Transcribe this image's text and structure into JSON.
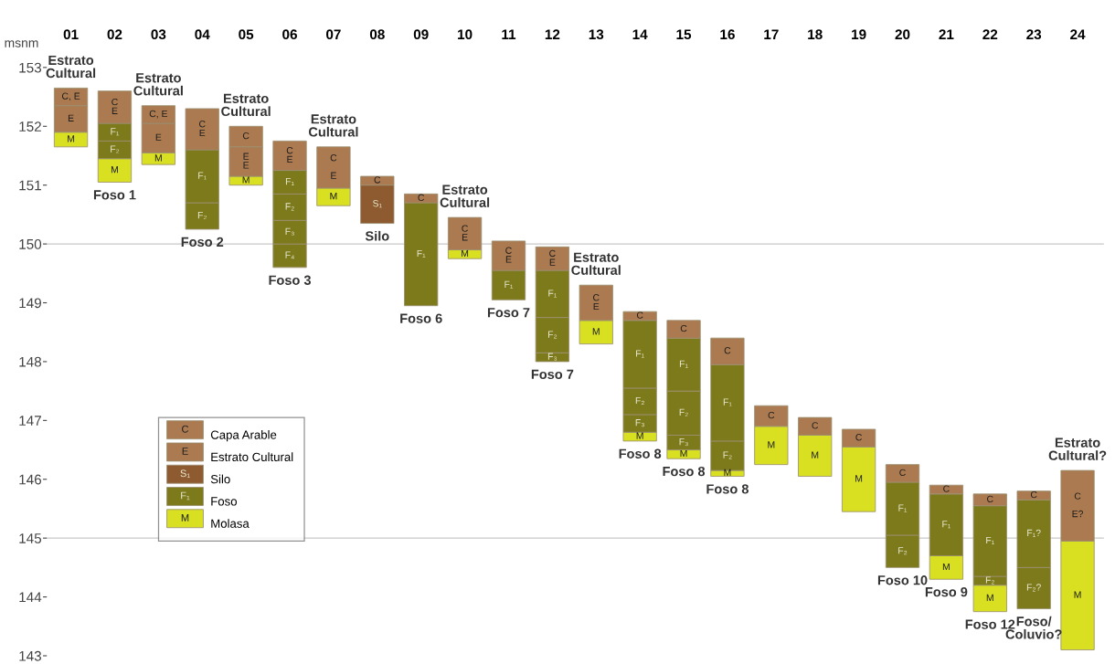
{
  "chart_data": {
    "type": "bar",
    "ylabel": "msnm",
    "categories": [
      "01",
      "02",
      "03",
      "04",
      "05",
      "06",
      "07",
      "08",
      "09",
      "10",
      "11",
      "12",
      "13",
      "14",
      "15",
      "16",
      "17",
      "18",
      "19",
      "20",
      "21",
      "22",
      "23",
      "24"
    ],
    "series": [
      {
        "name": "Molasa",
        "color": "#d8e021",
        "base": [
          151.65,
          151.05,
          151.35,
          null,
          151.0,
          null,
          150.65,
          null,
          null,
          149.75,
          null,
          null,
          148.3,
          146.65,
          146.35,
          146.05,
          146.25,
          146.05,
          145.45,
          null,
          144.3,
          143.75,
          null,
          143.1
        ],
        "values": [
          0.25,
          0.4,
          0.2,
          null,
          0.15,
          null,
          0.3,
          null,
          null,
          0.15,
          null,
          null,
          0.4,
          0.15,
          0.15,
          0.1,
          0.65,
          0.7,
          1.1,
          null,
          0.4,
          0.45,
          null,
          1.85
        ],
        "value_labels": [
          "M",
          "M",
          "M",
          null,
          "M",
          null,
          "M",
          null,
          null,
          "M",
          null,
          null,
          "M",
          "M",
          "M",
          "M",
          "M",
          "M",
          "M",
          null,
          "M",
          "M",
          null,
          "M"
        ]
      },
      {
        "color": "#7d7a1c",
        "base": [
          null,
          null,
          null,
          null,
          null,
          149.6,
          null,
          null,
          null,
          null,
          null,
          null,
          null,
          null,
          null,
          null,
          null,
          null,
          null,
          null,
          null,
          null,
          null,
          null
        ],
        "values": [
          null,
          null,
          null,
          null,
          null,
          0.4,
          null,
          null,
          null,
          null,
          null,
          null,
          null,
          null,
          null,
          null,
          null,
          null,
          null,
          null,
          null,
          null,
          null,
          null
        ],
        "value_labels": [
          null,
          null,
          null,
          null,
          null,
          "F₄",
          null,
          null,
          null,
          null,
          null,
          null,
          null,
          null,
          null,
          null,
          null,
          null,
          null,
          null,
          null,
          null,
          null,
          null
        ]
      },
      {
        "color": "#7d7a1c",
        "base": [
          null,
          null,
          null,
          null,
          null,
          150.0,
          null,
          null,
          null,
          null,
          null,
          148.0,
          null,
          146.8,
          146.5,
          null,
          null,
          null,
          null,
          null,
          null,
          null,
          null,
          null
        ],
        "values": [
          null,
          null,
          null,
          null,
          null,
          0.4,
          null,
          null,
          null,
          null,
          null,
          0.15,
          null,
          0.3,
          0.25,
          null,
          null,
          null,
          null,
          null,
          null,
          null,
          null,
          null
        ],
        "value_labels": [
          null,
          null,
          null,
          null,
          null,
          "F₃",
          null,
          null,
          null,
          null,
          null,
          "F₃",
          null,
          "F₃",
          "F₃",
          null,
          null,
          null,
          null,
          null,
          null,
          null,
          null,
          null
        ]
      },
      {
        "color": "#7d7a1c",
        "base": [
          null,
          151.45,
          null,
          150.25,
          null,
          150.4,
          null,
          null,
          null,
          null,
          null,
          148.15,
          null,
          147.1,
          146.75,
          146.15,
          null,
          null,
          null,
          144.5,
          null,
          144.2,
          143.8,
          null
        ],
        "values": [
          null,
          0.3,
          null,
          0.45,
          null,
          0.45,
          null,
          null,
          null,
          null,
          null,
          0.6,
          null,
          0.45,
          0.75,
          0.5,
          null,
          null,
          null,
          0.55,
          null,
          0.15,
          0.7,
          null
        ],
        "value_labels": [
          null,
          "F₂",
          null,
          "F₂",
          null,
          "F₂",
          null,
          null,
          null,
          null,
          null,
          "F₂",
          null,
          "F₂",
          "F₂",
          "F₂",
          null,
          null,
          null,
          "F₂",
          null,
          "F₂",
          "F₂?",
          null
        ]
      },
      {
        "name": "Foso",
        "color": "#7d7a1c",
        "base": [
          null,
          151.75,
          null,
          150.7,
          null,
          150.85,
          null,
          null,
          148.95,
          null,
          149.05,
          148.75,
          null,
          147.55,
          147.5,
          146.65,
          null,
          null,
          null,
          145.05,
          144.7,
          144.35,
          144.5,
          null
        ],
        "values": [
          null,
          0.3,
          null,
          0.9,
          null,
          0.4,
          null,
          null,
          1.75,
          null,
          0.5,
          0.8,
          null,
          1.15,
          0.9,
          1.3,
          null,
          null,
          null,
          0.9,
          1.05,
          1.2,
          1.15,
          null
        ],
        "value_labels": [
          null,
          "F₁",
          null,
          "F₁",
          null,
          "F₁",
          null,
          null,
          "F₁",
          null,
          "F₁",
          "F₁",
          null,
          "F₁",
          "F₁",
          "F₁",
          null,
          null,
          null,
          "F₁",
          "F₁",
          "F₁",
          "F₁?",
          null
        ]
      },
      {
        "name": "Silo",
        "color": "#8e5a30",
        "base": [
          null,
          null,
          null,
          null,
          null,
          null,
          null,
          150.35,
          null,
          null,
          null,
          null,
          null,
          null,
          null,
          null,
          null,
          null,
          null,
          null,
          null,
          null,
          null,
          null
        ],
        "values": [
          null,
          null,
          null,
          null,
          null,
          null,
          null,
          0.65,
          null,
          null,
          null,
          null,
          null,
          null,
          null,
          null,
          null,
          null,
          null,
          null,
          null,
          null,
          null,
          null
        ],
        "value_labels": [
          null,
          null,
          null,
          null,
          null,
          null,
          null,
          "S₁",
          null,
          null,
          null,
          null,
          null,
          null,
          null,
          null,
          null,
          null,
          null,
          null,
          null,
          null,
          null,
          null
        ]
      },
      {
        "name": "Estrato Cultural",
        "color": "#ab7a50",
        "base": [
          151.9,
          null,
          151.55,
          null,
          151.15,
          null,
          null,
          null,
          null,
          null,
          null,
          null,
          null,
          null,
          null,
          null,
          null,
          null,
          null,
          null,
          null,
          null,
          null,
          null
        ],
        "values": [
          0.45,
          null,
          0.5,
          null,
          0.5,
          null,
          null,
          null,
          null,
          null,
          null,
          null,
          null,
          null,
          null,
          null,
          null,
          null,
          null,
          null,
          null,
          null,
          null,
          null
        ],
        "value_labels": [
          "E",
          null,
          "E",
          null,
          "E\nE",
          null,
          null,
          null,
          null,
          null,
          null,
          null,
          null,
          null,
          null,
          null,
          null,
          null,
          null,
          null,
          null,
          null,
          null,
          null
        ]
      },
      {
        "name": "Capa Arable",
        "color": "#ab7a50",
        "base": [
          152.35,
          152.05,
          152.05,
          151.6,
          151.65,
          151.25,
          150.95,
          151.0,
          150.7,
          149.9,
          149.55,
          149.55,
          148.7,
          148.7,
          148.4,
          147.95,
          146.9,
          146.75,
          146.55,
          145.95,
          145.75,
          145.55,
          145.65,
          144.95
        ],
        "values": [
          0.3,
          0.55,
          0.3,
          0.7,
          0.35,
          0.5,
          0.7,
          0.15,
          0.15,
          0.55,
          0.5,
          0.4,
          0.6,
          0.15,
          0.3,
          0.45,
          0.35,
          0.3,
          0.3,
          0.3,
          0.15,
          0.2,
          0.15,
          1.2
        ],
        "value_labels": [
          "C, E",
          "C\nE",
          "C, E",
          "C\nE",
          "C",
          "C\nE",
          "C\n\nE",
          "C",
          "C",
          "C\nE",
          "C\nE",
          "C\nE",
          "C\nE",
          "C",
          "C",
          "C",
          "C",
          "C",
          "C",
          "C",
          "C",
          "C",
          "C",
          "C\n\nE?"
        ]
      }
    ],
    "ylim": [
      143,
      153
    ],
    "yticks": [
      143,
      144,
      145,
      146,
      147,
      148,
      149,
      150,
      151,
      152,
      153
    ],
    "ref_lines": [
      {
        "axis": "y",
        "value": 150,
        "color": "#c8c8c8"
      },
      {
        "axis": "y",
        "value": 145,
        "color": "#c8c8c8"
      }
    ],
    "legend": "left",
    "grid": false,
    "annotations": [
      {
        "text": "Estrato\nCultural",
        "x": "01",
        "y": 152.65
      },
      {
        "text": "Estrato\nCultural",
        "x": "03",
        "y": 152.35
      },
      {
        "text": "Estrato\nCultural",
        "x": "05",
        "y": 152.0
      },
      {
        "text": "Estrato\nCultural",
        "x": "07",
        "y": 151.65
      },
      {
        "text": "Estrato\nCultural",
        "x": "10",
        "y": 150.45
      },
      {
        "text": "Estrato\nCultural",
        "x": "13",
        "y": 149.3
      },
      {
        "text": "Estrato\nCultural?",
        "x": "24",
        "y": 146.15
      },
      {
        "text": "Foso 1",
        "x": "02",
        "y": 151.05
      },
      {
        "text": "Foso 2",
        "x": "04",
        "y": 150.25
      },
      {
        "text": "Foso 3",
        "x": "06",
        "y": 149.6
      },
      {
        "text": "Silo",
        "x": "08",
        "y": 150.35
      },
      {
        "text": "Foso 6",
        "x": "09",
        "y": 148.95
      },
      {
        "text": "Foso 7",
        "x": "11",
        "y": 149.05
      },
      {
        "text": "Foso 7",
        "x": "12",
        "y": 148.0
      },
      {
        "text": "Foso 8",
        "x": "14",
        "y": 146.65
      },
      {
        "text": "Foso 8",
        "x": "15",
        "y": 146.35
      },
      {
        "text": "Foso 8",
        "x": "16",
        "y": 146.05
      },
      {
        "text": "Foso 10",
        "x": "20",
        "y": 144.5
      },
      {
        "text": "Foso 9",
        "x": "21",
        "y": 144.3
      },
      {
        "text": "Foso 12",
        "x": "22",
        "y": 143.75
      },
      {
        "text": "Foso/\nColuvio?",
        "x": "23",
        "y": 143.8
      }
    ]
  }
}
